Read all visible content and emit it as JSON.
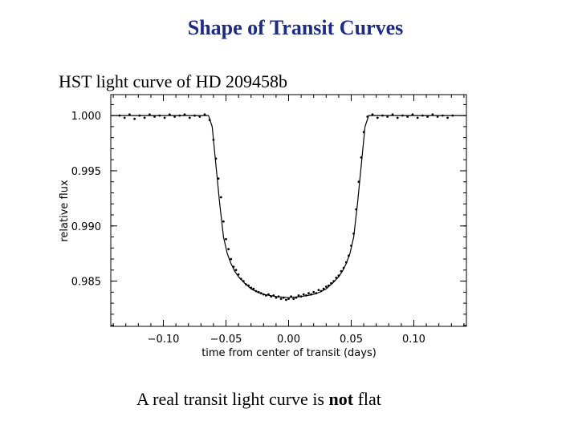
{
  "slide": {
    "title": "Shape of Transit Curves",
    "subtitle": "HST light curve of HD 209458b",
    "caption_before": "A real transit light curve is ",
    "caption_emphasis": "not",
    "caption_after": " flat"
  },
  "chart_data": {
    "type": "scatter",
    "title": "",
    "xlabel": "time from center of transit (days)",
    "ylabel": "relative flux",
    "xlim": [
      -0.142,
      0.142
    ],
    "ylim": [
      0.9809,
      1.0019
    ],
    "xticks": [
      -0.1,
      -0.05,
      0.0,
      0.05,
      0.1
    ],
    "xtick_labels": [
      "−0.10",
      "−0.05",
      "0.00",
      "0.05",
      "0.10"
    ],
    "yticks": [
      0.985,
      0.99,
      0.995,
      1.0
    ],
    "ytick_labels": [
      "0.985",
      "0.990",
      "0.995",
      "1.000"
    ],
    "grid": false,
    "series": [
      {
        "kind": "model",
        "x": [
          -0.142,
          -0.064,
          -0.061,
          -0.058,
          -0.055,
          -0.052,
          -0.049,
          -0.046,
          -0.043,
          -0.04,
          -0.035,
          -0.03,
          -0.025,
          -0.02,
          -0.015,
          -0.01,
          0.0,
          0.01,
          0.015,
          0.02,
          0.025,
          0.03,
          0.035,
          0.04,
          0.043,
          0.046,
          0.049,
          0.052,
          0.055,
          0.058,
          0.061,
          0.064,
          0.142
        ],
        "y": [
          1.0,
          1.0,
          0.999,
          0.9955,
          0.992,
          0.989,
          0.9875,
          0.9866,
          0.9859,
          0.9854,
          0.9848,
          0.9843,
          0.984,
          0.9838,
          0.9837,
          0.9836,
          0.9835,
          0.9836,
          0.9837,
          0.9838,
          0.984,
          0.9843,
          0.9848,
          0.9854,
          0.9859,
          0.9866,
          0.9875,
          0.989,
          0.992,
          0.9955,
          0.999,
          1.0,
          1.0
        ]
      },
      {
        "kind": "data",
        "x": [
          -0.135,
          -0.131,
          -0.127,
          -0.123,
          -0.119,
          -0.115,
          -0.111,
          -0.107,
          -0.103,
          -0.099,
          -0.095,
          -0.091,
          -0.087,
          -0.083,
          -0.079,
          -0.075,
          -0.071,
          -0.067,
          -0.063,
          -0.06,
          -0.058,
          -0.056,
          -0.054,
          -0.052,
          -0.05,
          -0.048,
          -0.046,
          -0.044,
          -0.042,
          -0.04,
          -0.038,
          -0.036,
          -0.034,
          -0.032,
          -0.03,
          -0.028,
          -0.026,
          -0.024,
          -0.022,
          -0.02,
          -0.018,
          -0.016,
          -0.014,
          -0.012,
          -0.01,
          -0.008,
          -0.006,
          -0.004,
          -0.002,
          0.0,
          0.002,
          0.004,
          0.006,
          0.008,
          0.01,
          0.012,
          0.014,
          0.016,
          0.018,
          0.02,
          0.022,
          0.024,
          0.026,
          0.028,
          0.03,
          0.032,
          0.034,
          0.036,
          0.038,
          0.04,
          0.042,
          0.044,
          0.046,
          0.048,
          0.05,
          0.052,
          0.054,
          0.056,
          0.058,
          0.06,
          0.063,
          0.067,
          0.071,
          0.075,
          0.079,
          0.083,
          0.087,
          0.091,
          0.095,
          0.099,
          0.103,
          0.107,
          0.111,
          0.115,
          0.119,
          0.123,
          0.127,
          0.131
        ],
        "y": [
          1.0,
          0.9998,
          1.0001,
          0.9997,
          1.0,
          0.9998,
          1.0001,
          0.9999,
          1.0,
          0.9998,
          1.0001,
          0.9999,
          1.0,
          1.0001,
          0.9998,
          1.0,
          0.9999,
          1.0001,
          0.9996,
          0.9978,
          0.9961,
          0.9943,
          0.9926,
          0.9904,
          0.9888,
          0.9879,
          0.987,
          0.9863,
          0.986,
          0.9856,
          0.9852,
          0.985,
          0.9847,
          0.9846,
          0.9844,
          0.9843,
          0.9841,
          0.984,
          0.9839,
          0.9838,
          0.9837,
          0.9838,
          0.9836,
          0.9837,
          0.9835,
          0.9836,
          0.9834,
          0.9835,
          0.9833,
          0.9834,
          0.9836,
          0.9834,
          0.9835,
          0.9837,
          0.9836,
          0.9838,
          0.9837,
          0.9839,
          0.9838,
          0.984,
          0.9839,
          0.9842,
          0.9841,
          0.9843,
          0.9845,
          0.9846,
          0.9848,
          0.985,
          0.9853,
          0.9855,
          0.9859,
          0.9862,
          0.9867,
          0.9873,
          0.9882,
          0.9893,
          0.9915,
          0.994,
          0.9962,
          0.9985,
          0.9999,
          1.0001,
          0.9998,
          1.0,
          0.9999,
          1.0001,
          0.9998,
          1.0,
          0.9999,
          1.0001,
          0.9998,
          1.0,
          0.9999,
          1.0001,
          0.9999,
          1.0,
          0.9998,
          1.0
        ]
      }
    ]
  }
}
